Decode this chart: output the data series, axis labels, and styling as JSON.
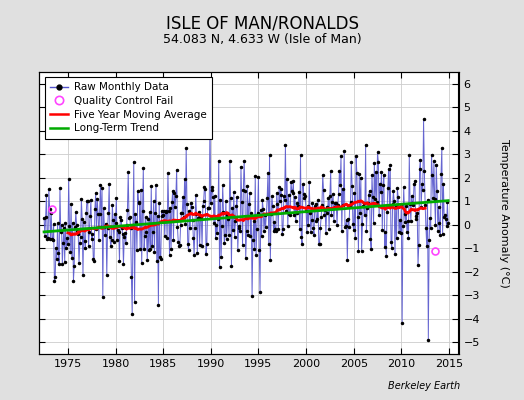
{
  "title": "ISLE OF MAN/RONALDS",
  "subtitle": "54.083 N, 4.633 W (Isle of Man)",
  "ylabel": "Temperature Anomaly (°C)",
  "credit": "Berkeley Earth",
  "ylim": [
    -5.5,
    6.5
  ],
  "xlim": [
    1972.0,
    2016.0
  ],
  "yticks": [
    -5,
    -4,
    -3,
    -2,
    -1,
    0,
    1,
    2,
    3,
    4,
    5,
    6
  ],
  "xticks": [
    1975,
    1980,
    1985,
    1990,
    1995,
    2000,
    2005,
    2010,
    2015
  ],
  "bg_color": "#e0e0e0",
  "plot_bg_color": "#ffffff",
  "line_color": "#5555cc",
  "marker_color": "#000000",
  "ma_color": "#ff0000",
  "trend_color": "#00aa00",
  "qc_color": "#ff44ff",
  "title_fontsize": 12,
  "subtitle_fontsize": 9,
  "tick_labelsize": 8,
  "legend_fontsize": 7.5,
  "seed": 42
}
